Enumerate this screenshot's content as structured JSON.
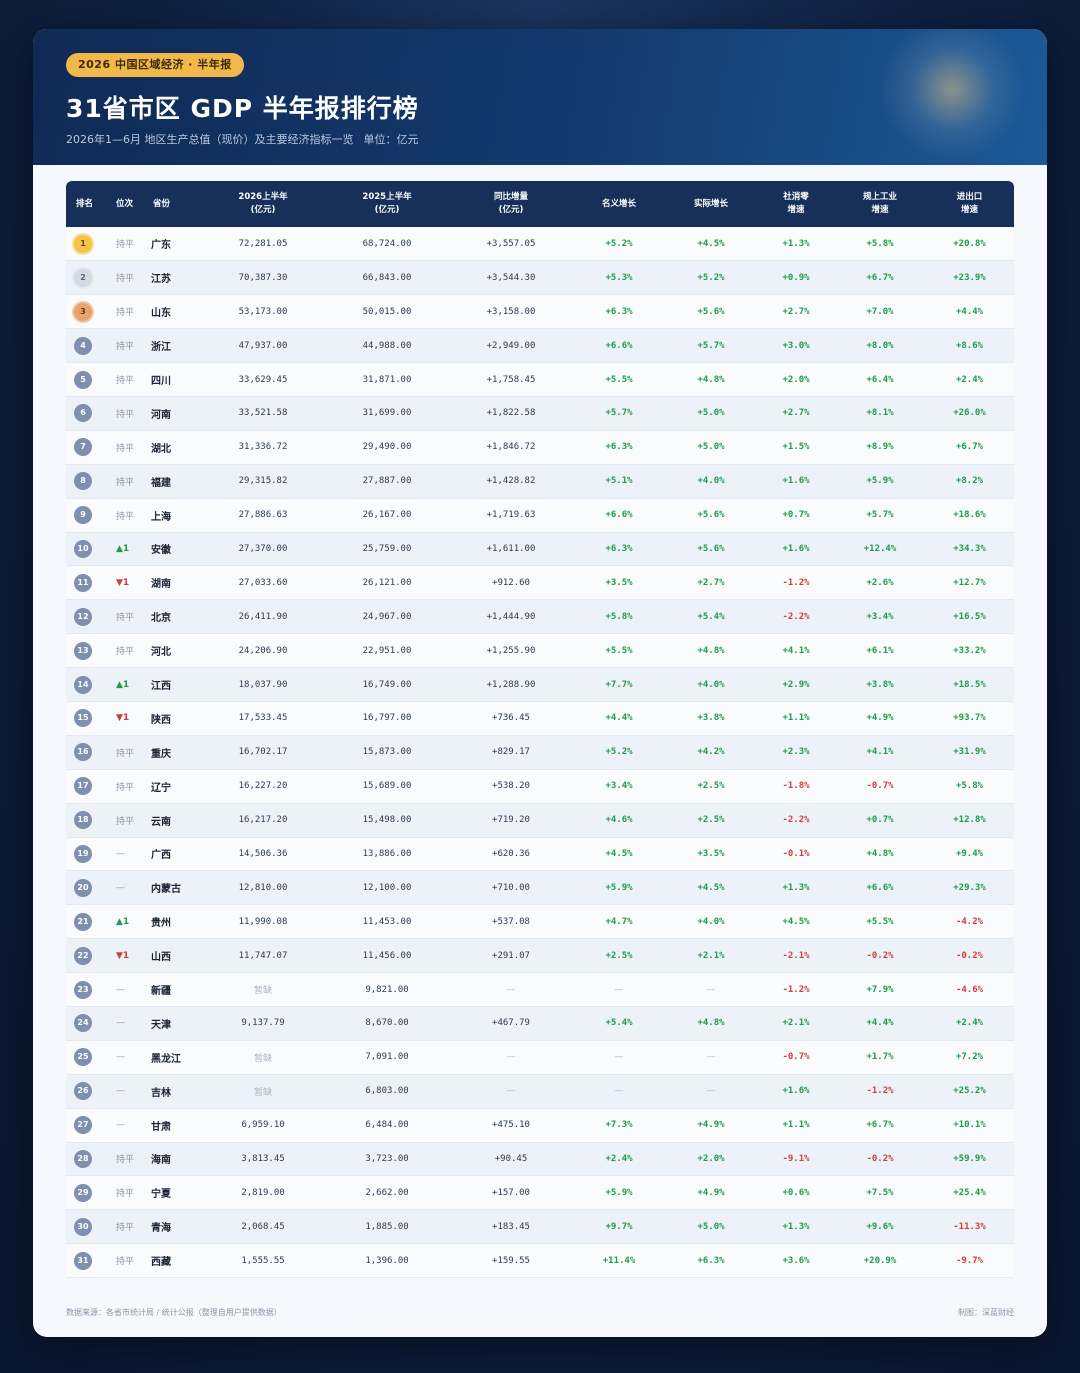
{
  "header": {
    "tag": "2026 中国区域经济 · 半年报",
    "title": "31省市区 GDP 半年报排行榜",
    "subtitle": "2026年1—6月 地区生产总值（现价）及主要经济指标一览",
    "unit": "单位：亿元"
  },
  "columns": [
    {
      "l1": "排名",
      "l2": ""
    },
    {
      "l1": "位次",
      "l2": ""
    },
    {
      "l1": "省份",
      "l2": ""
    },
    {
      "l1": "2026上半年",
      "l2": "(亿元)"
    },
    {
      "l1": "2025上半年",
      "l2": "(亿元)"
    },
    {
      "l1": "同比增量",
      "l2": "(亿元)"
    },
    {
      "l1": "名义增长",
      "l2": ""
    },
    {
      "l1": "实际增长",
      "l2": ""
    },
    {
      "l1": "社消零",
      "l2": "增速"
    },
    {
      "l1": "规上工业",
      "l2": "增速"
    },
    {
      "l1": "进出口",
      "l2": "增速"
    }
  ],
  "rows": [
    {
      "rank": "1",
      "chg": "持平",
      "prov": "广东",
      "v26": "72,281.05",
      "v25": "68,724.00",
      "inc": "+3,557.05",
      "nom": "+5.2%",
      "real": "+4.5%",
      "retail": "+1.3%",
      "ind": "+5.8%",
      "trade": "+20.8%"
    },
    {
      "rank": "2",
      "chg": "持平",
      "prov": "江苏",
      "v26": "70,387.30",
      "v25": "66,843.00",
      "inc": "+3,544.30",
      "nom": "+5.3%",
      "real": "+5.2%",
      "retail": "+0.9%",
      "ind": "+6.7%",
      "trade": "+23.9%"
    },
    {
      "rank": "3",
      "chg": "持平",
      "prov": "山东",
      "v26": "53,173.00",
      "v25": "50,015.00",
      "inc": "+3,158.00",
      "nom": "+6.3%",
      "real": "+5.6%",
      "retail": "+2.7%",
      "ind": "+7.0%",
      "trade": "+4.4%"
    },
    {
      "rank": "4",
      "chg": "持平",
      "prov": "浙江",
      "v26": "47,937.00",
      "v25": "44,988.00",
      "inc": "+2,949.00",
      "nom": "+6.6%",
      "real": "+5.7%",
      "retail": "+3.0%",
      "ind": "+8.0%",
      "trade": "+8.6%"
    },
    {
      "rank": "5",
      "chg": "持平",
      "prov": "四川",
      "v26": "33,629.45",
      "v25": "31,871.00",
      "inc": "+1,758.45",
      "nom": "+5.5%",
      "real": "+4.8%",
      "retail": "+2.0%",
      "ind": "+6.4%",
      "trade": "+2.4%"
    },
    {
      "rank": "6",
      "chg": "持平",
      "prov": "河南",
      "v26": "33,521.58",
      "v25": "31,699.00",
      "inc": "+1,822.58",
      "nom": "+5.7%",
      "real": "+5.0%",
      "retail": "+2.7%",
      "ind": "+8.1%",
      "trade": "+26.0%"
    },
    {
      "rank": "7",
      "chg": "持平",
      "prov": "湖北",
      "v26": "31,336.72",
      "v25": "29,490.00",
      "inc": "+1,846.72",
      "nom": "+6.3%",
      "real": "+5.0%",
      "retail": "+1.5%",
      "ind": "+8.9%",
      "trade": "+6.7%"
    },
    {
      "rank": "8",
      "chg": "持平",
      "prov": "福建",
      "v26": "29,315.82",
      "v25": "27,887.00",
      "inc": "+1,428.82",
      "nom": "+5.1%",
      "real": "+4.0%",
      "retail": "+1.6%",
      "ind": "+5.9%",
      "trade": "+8.2%"
    },
    {
      "rank": "9",
      "chg": "持平",
      "prov": "上海",
      "v26": "27,886.63",
      "v25": "26,167.00",
      "inc": "+1,719.63",
      "nom": "+6.6%",
      "real": "+5.6%",
      "retail": "+0.7%",
      "ind": "+5.7%",
      "trade": "+18.6%"
    },
    {
      "rank": "10",
      "chg": "▲1",
      "prov": "安徽",
      "v26": "27,370.00",
      "v25": "25,759.00",
      "inc": "+1,611.00",
      "nom": "+6.3%",
      "real": "+5.6%",
      "retail": "+1.6%",
      "ind": "+12.4%",
      "trade": "+34.3%"
    },
    {
      "rank": "11",
      "chg": "▼1",
      "prov": "湖南",
      "v26": "27,033.60",
      "v25": "26,121.00",
      "inc": "+912.60",
      "nom": "+3.5%",
      "real": "+2.7%",
      "retail": "-1.2%",
      "ind": "+2.6%",
      "trade": "+12.7%"
    },
    {
      "rank": "12",
      "chg": "持平",
      "prov": "北京",
      "v26": "26,411.90",
      "v25": "24,967.00",
      "inc": "+1,444.90",
      "nom": "+5.8%",
      "real": "+5.4%",
      "retail": "-2.2%",
      "ind": "+3.4%",
      "trade": "+16.5%"
    },
    {
      "rank": "13",
      "chg": "持平",
      "prov": "河北",
      "v26": "24,206.90",
      "v25": "22,951.00",
      "inc": "+1,255.90",
      "nom": "+5.5%",
      "real": "+4.8%",
      "retail": "+4.1%",
      "ind": "+6.1%",
      "trade": "+33.2%"
    },
    {
      "rank": "14",
      "chg": "▲1",
      "prov": "江西",
      "v26": "18,037.90",
      "v25": "16,749.00",
      "inc": "+1,288.90",
      "nom": "+7.7%",
      "real": "+4.0%",
      "retail": "+2.9%",
      "ind": "+3.8%",
      "trade": "+18.5%"
    },
    {
      "rank": "15",
      "chg": "▼1",
      "prov": "陕西",
      "v26": "17,533.45",
      "v25": "16,797.00",
      "inc": "+736.45",
      "nom": "+4.4%",
      "real": "+3.8%",
      "retail": "+1.1%",
      "ind": "+4.9%",
      "trade": "+93.7%"
    },
    {
      "rank": "16",
      "chg": "持平",
      "prov": "重庆",
      "v26": "16,702.17",
      "v25": "15,873.00",
      "inc": "+829.17",
      "nom": "+5.2%",
      "real": "+4.2%",
      "retail": "+2.3%",
      "ind": "+4.1%",
      "trade": "+31.9%"
    },
    {
      "rank": "17",
      "chg": "持平",
      "prov": "辽宁",
      "v26": "16,227.20",
      "v25": "15,689.00",
      "inc": "+538.20",
      "nom": "+3.4%",
      "real": "+2.5%",
      "retail": "-1.8%",
      "ind": "-0.7%",
      "trade": "+5.8%"
    },
    {
      "rank": "18",
      "chg": "持平",
      "prov": "云南",
      "v26": "16,217.20",
      "v25": "15,498.00",
      "inc": "+719.20",
      "nom": "+4.6%",
      "real": "+2.5%",
      "retail": "-2.2%",
      "ind": "+0.7%",
      "trade": "+12.8%"
    },
    {
      "rank": "19",
      "chg": "—",
      "prov": "广西",
      "v26": "14,506.36",
      "v25": "13,886.00",
      "inc": "+620.36",
      "nom": "+4.5%",
      "real": "+3.5%",
      "retail": "-0.1%",
      "ind": "+4.8%",
      "trade": "+9.4%"
    },
    {
      "rank": "20",
      "chg": "—",
      "prov": "内蒙古",
      "v26": "12,810.00",
      "v25": "12,100.00",
      "inc": "+710.00",
      "nom": "+5.9%",
      "real": "+4.5%",
      "retail": "+1.3%",
      "ind": "+6.6%",
      "trade": "+29.3%"
    },
    {
      "rank": "21",
      "chg": "▲1",
      "prov": "贵州",
      "v26": "11,990.08",
      "v25": "11,453.00",
      "inc": "+537.08",
      "nom": "+4.7%",
      "real": "+4.0%",
      "retail": "+4.5%",
      "ind": "+5.5%",
      "trade": "-4.2%"
    },
    {
      "rank": "22",
      "chg": "▼1",
      "prov": "山西",
      "v26": "11,747.07",
      "v25": "11,456.00",
      "inc": "+291.07",
      "nom": "+2.5%",
      "real": "+2.1%",
      "retail": "-2.1%",
      "ind": "-0.2%",
      "trade": "-0.2%"
    },
    {
      "rank": "23",
      "chg": "—",
      "prov": "新疆",
      "v26": "暂缺",
      "v25": "9,821.00",
      "inc": "—",
      "nom": "—",
      "real": "—",
      "retail": "-1.2%",
      "ind": "+7.9%",
      "trade": "-4.6%"
    },
    {
      "rank": "24",
      "chg": "—",
      "prov": "天津",
      "v26": "9,137.79",
      "v25": "8,670.00",
      "inc": "+467.79",
      "nom": "+5.4%",
      "real": "+4.8%",
      "retail": "+2.1%",
      "ind": "+4.4%",
      "trade": "+2.4%"
    },
    {
      "rank": "25",
      "chg": "—",
      "prov": "黑龙江",
      "v26": "暂缺",
      "v25": "7,091.00",
      "inc": "—",
      "nom": "—",
      "real": "—",
      "retail": "-0.7%",
      "ind": "+1.7%",
      "trade": "+7.2%"
    },
    {
      "rank": "26",
      "chg": "—",
      "prov": "吉林",
      "v26": "暂缺",
      "v25": "6,803.00",
      "inc": "—",
      "nom": "—",
      "real": "—",
      "retail": "+1.6%",
      "ind": "-1.2%",
      "trade": "+25.2%"
    },
    {
      "rank": "27",
      "chg": "—",
      "prov": "甘肃",
      "v26": "6,959.10",
      "v25": "6,484.00",
      "inc": "+475.10",
      "nom": "+7.3%",
      "real": "+4.9%",
      "retail": "+1.1%",
      "ind": "+6.7%",
      "trade": "+10.1%"
    },
    {
      "rank": "28",
      "chg": "持平",
      "prov": "海南",
      "v26": "3,813.45",
      "v25": "3,723.00",
      "inc": "+90.45",
      "nom": "+2.4%",
      "real": "+2.0%",
      "retail": "-9.1%",
      "ind": "-0.2%",
      "trade": "+59.9%"
    },
    {
      "rank": "29",
      "chg": "持平",
      "prov": "宁夏",
      "v26": "2,819.00",
      "v25": "2,662.00",
      "inc": "+157.00",
      "nom": "+5.9%",
      "real": "+4.9%",
      "retail": "+0.6%",
      "ind": "+7.5%",
      "trade": "+25.4%"
    },
    {
      "rank": "30",
      "chg": "持平",
      "prov": "青海",
      "v26": "2,068.45",
      "v25": "1,885.00",
      "inc": "+183.45",
      "nom": "+9.7%",
      "real": "+5.0%",
      "retail": "+1.3%",
      "ind": "+9.6%",
      "trade": "-11.3%"
    },
    {
      "rank": "31",
      "chg": "持平",
      "prov": "西藏",
      "v26": "1,555.55",
      "v25": "1,396.00",
      "inc": "+159.55",
      "nom": "+11.4%",
      "real": "+6.3%",
      "retail": "+3.6%",
      "ind": "+20.9%",
      "trade": "-9.7%"
    }
  ],
  "footer": {
    "source": "数据来源：各省市统计局 / 统计公报（整理自用户提供数据）",
    "credit": "制图：深蓝财经"
  },
  "colors": {
    "header_bg": "#16305a",
    "positive": "#1e9b4c",
    "negative": "#d23b3b",
    "tag_bg": "#f2b84b"
  }
}
